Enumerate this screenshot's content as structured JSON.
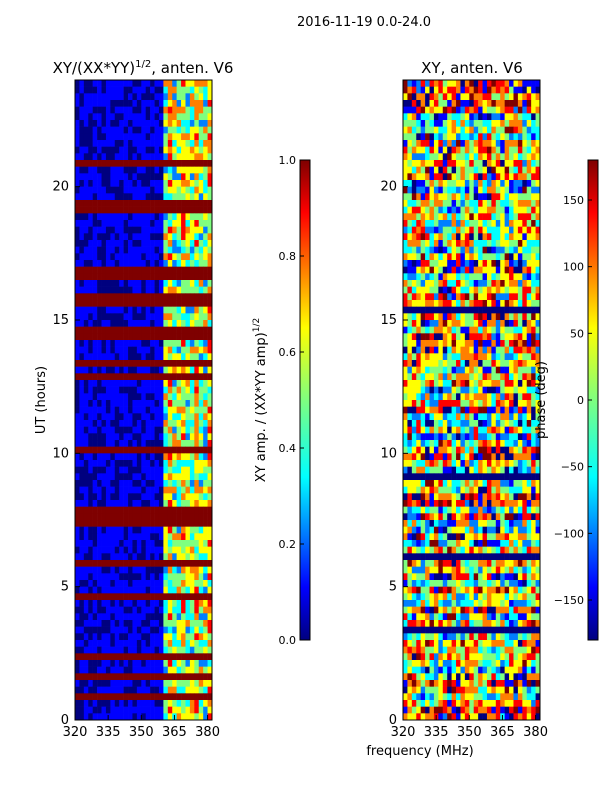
{
  "figure_title": "2016-11-19 0.0-24.0",
  "colors": {
    "jet": [
      "#00007f",
      "#0000ff",
      "#007fff",
      "#00ffff",
      "#7fff7f",
      "#ffff00",
      "#ff7f00",
      "#ff0000",
      "#7f0000"
    ],
    "axis": "#000000"
  },
  "chart_data": [
    {
      "type": "heatmap",
      "title_main": "XY/(XX*YY)",
      "title_sup": "1/2",
      "title_rest": ", anten. V6",
      "xlabel": "",
      "ylabel": "UT (hours)",
      "xlim": [
        320,
        382
      ],
      "ylim": [
        0,
        24
      ],
      "xticks": [
        "320",
        "335",
        "350",
        "365",
        "380"
      ],
      "xtick_values": [
        320,
        335,
        350,
        365,
        380
      ],
      "yticks": [
        "0",
        "5",
        "10",
        "15",
        "20"
      ],
      "ytick_values": [
        0,
        5,
        10,
        15,
        20
      ],
      "colorbar": {
        "label_main": "XY amp. / (XX*YY amp)",
        "label_sup": "1/2",
        "range": [
          0.0,
          1.0
        ],
        "ticks": [
          "0.0",
          "0.2",
          "0.4",
          "0.6",
          "0.8",
          "1.0"
        ],
        "tick_values": [
          0.0,
          0.2,
          0.4,
          0.6,
          0.8,
          1.0
        ]
      },
      "saturated_bands_hours": [
        [
          0.0,
          0.1
        ],
        [
          0.8,
          1.1
        ],
        [
          1.5,
          1.8
        ],
        [
          2.3,
          2.5
        ],
        [
          4.4,
          4.7
        ],
        [
          5.8,
          6.0
        ],
        [
          7.2,
          8.1
        ],
        [
          8.4,
          8.6
        ],
        [
          10.1,
          10.3
        ],
        [
          12.7,
          12.9
        ],
        [
          13.2,
          13.4
        ],
        [
          14.2,
          14.8
        ],
        [
          15.5,
          15.9
        ],
        [
          16.6,
          17.1
        ],
        [
          19.1,
          19.4
        ],
        [
          20.7,
          21.1
        ]
      ],
      "active_band_MHz": [
        360,
        382
      ]
    },
    {
      "type": "heatmap",
      "title_main": "XY, anten. V6",
      "xlabel": "frequency (MHz)",
      "ylabel": "",
      "xlim": [
        320,
        382
      ],
      "ylim": [
        0,
        24
      ],
      "xticks": [
        "320",
        "335",
        "350",
        "365",
        "380"
      ],
      "xtick_values": [
        320,
        335,
        350,
        365,
        380
      ],
      "yticks": [
        "0",
        "5",
        "10",
        "15",
        "20"
      ],
      "ytick_values": [
        0,
        5,
        10,
        15,
        20
      ],
      "colorbar": {
        "label_main": "phase (deg)",
        "range": [
          -180,
          180
        ],
        "ticks": [
          "−150",
          "−100",
          "−50",
          "0",
          "50",
          "100",
          "150"
        ],
        "tick_values": [
          -150,
          -100,
          -50,
          0,
          50,
          100,
          150
        ]
      }
    }
  ]
}
